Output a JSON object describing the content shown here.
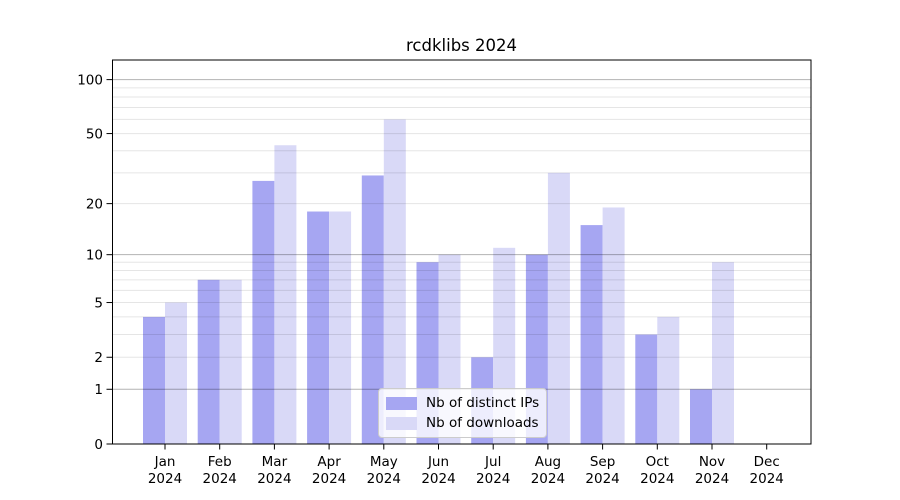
{
  "title": "rcdklibs 2024",
  "colors": {
    "ips_bar": "#a6a6f2",
    "downloads_bar": "#d9d9f7",
    "axis": "#000000",
    "major_grid": "rgba(0,0,0,0.30)",
    "minor_grid": "rgba(0,0,0,0.10)",
    "legend_border": "#cccccc",
    "background": "#ffffff"
  },
  "legend": {
    "items": [
      {
        "label": "Nb of distinct IPs",
        "key": "ips"
      },
      {
        "label": "Nb of downloads",
        "key": "downloads"
      }
    ],
    "position": "lower center"
  },
  "y_axis": {
    "scale": "log10(v+1)",
    "tick_values": [
      0,
      1,
      2,
      5,
      10,
      20,
      50,
      100
    ],
    "tick_labels": [
      "0",
      "1",
      "2",
      "5",
      "10",
      "20",
      "50",
      "100"
    ],
    "major_gridlines": [
      1,
      10,
      100
    ],
    "minor_gridlines": [
      2,
      3,
      4,
      5,
      6,
      7,
      8,
      9,
      20,
      30,
      40,
      50,
      60,
      70,
      80,
      90
    ]
  },
  "x_axis": {
    "categories": [
      "Jan 2024",
      "Feb 2024",
      "Mar 2024",
      "Apr 2024",
      "May 2024",
      "Jun 2024",
      "Jul 2024",
      "Aug 2024",
      "Sep 2024",
      "Oct 2024",
      "Nov 2024",
      "Dec 2024"
    ]
  },
  "chart_data": {
    "type": "bar",
    "title": "rcdklibs 2024",
    "categories": [
      "Jan 2024",
      "Feb 2024",
      "Mar 2024",
      "Apr 2024",
      "May 2024",
      "Jun 2024",
      "Jul 2024",
      "Aug 2024",
      "Sep 2024",
      "Oct 2024",
      "Nov 2024",
      "Dec 2024"
    ],
    "series": [
      {
        "name": "Nb of distinct IPs",
        "key": "ips",
        "color": "#a6a6f2",
        "values": [
          4,
          7,
          27,
          18,
          29,
          9,
          2,
          10,
          15,
          3,
          1,
          0
        ]
      },
      {
        "name": "Nb of downloads",
        "key": "downloads",
        "color": "#d9d9f7",
        "values": [
          5,
          7,
          43,
          18,
          60,
          10,
          11,
          30,
          19,
          4,
          9,
          0
        ]
      }
    ],
    "yscale": "log1p",
    "yticks": [
      0,
      1,
      2,
      5,
      10,
      20,
      50,
      100
    ],
    "ylim": [
      0,
      128
    ],
    "xlabel": "",
    "ylabel": "",
    "grid": true,
    "grid_above_bars": true,
    "legend_position": "lower center"
  }
}
